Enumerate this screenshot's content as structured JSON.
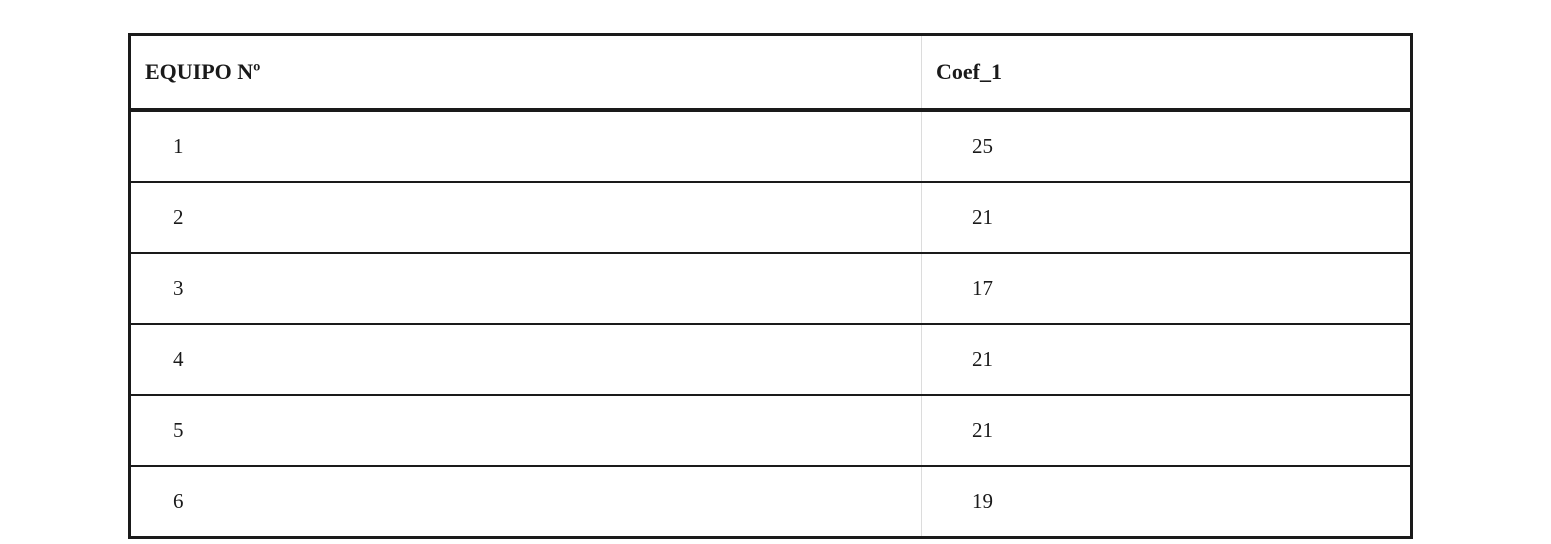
{
  "table": {
    "columns": [
      {
        "label": "EQUIPO Nº"
      },
      {
        "label": "Coef_1"
      }
    ],
    "rows": [
      {
        "equipo": "1",
        "coef": "25"
      },
      {
        "equipo": "2",
        "coef": "21"
      },
      {
        "equipo": "3",
        "coef": "17"
      },
      {
        "equipo": "4",
        "coef": "21"
      },
      {
        "equipo": "5",
        "coef": "21"
      },
      {
        "equipo": "6",
        "coef": "19"
      }
    ],
    "colors": {
      "outer_border": "#1a1a1a",
      "row_separator": "#1a1a1a",
      "column_divider": "#dcdcdc",
      "text": "#1a1a1a",
      "background": "#ffffff"
    }
  }
}
